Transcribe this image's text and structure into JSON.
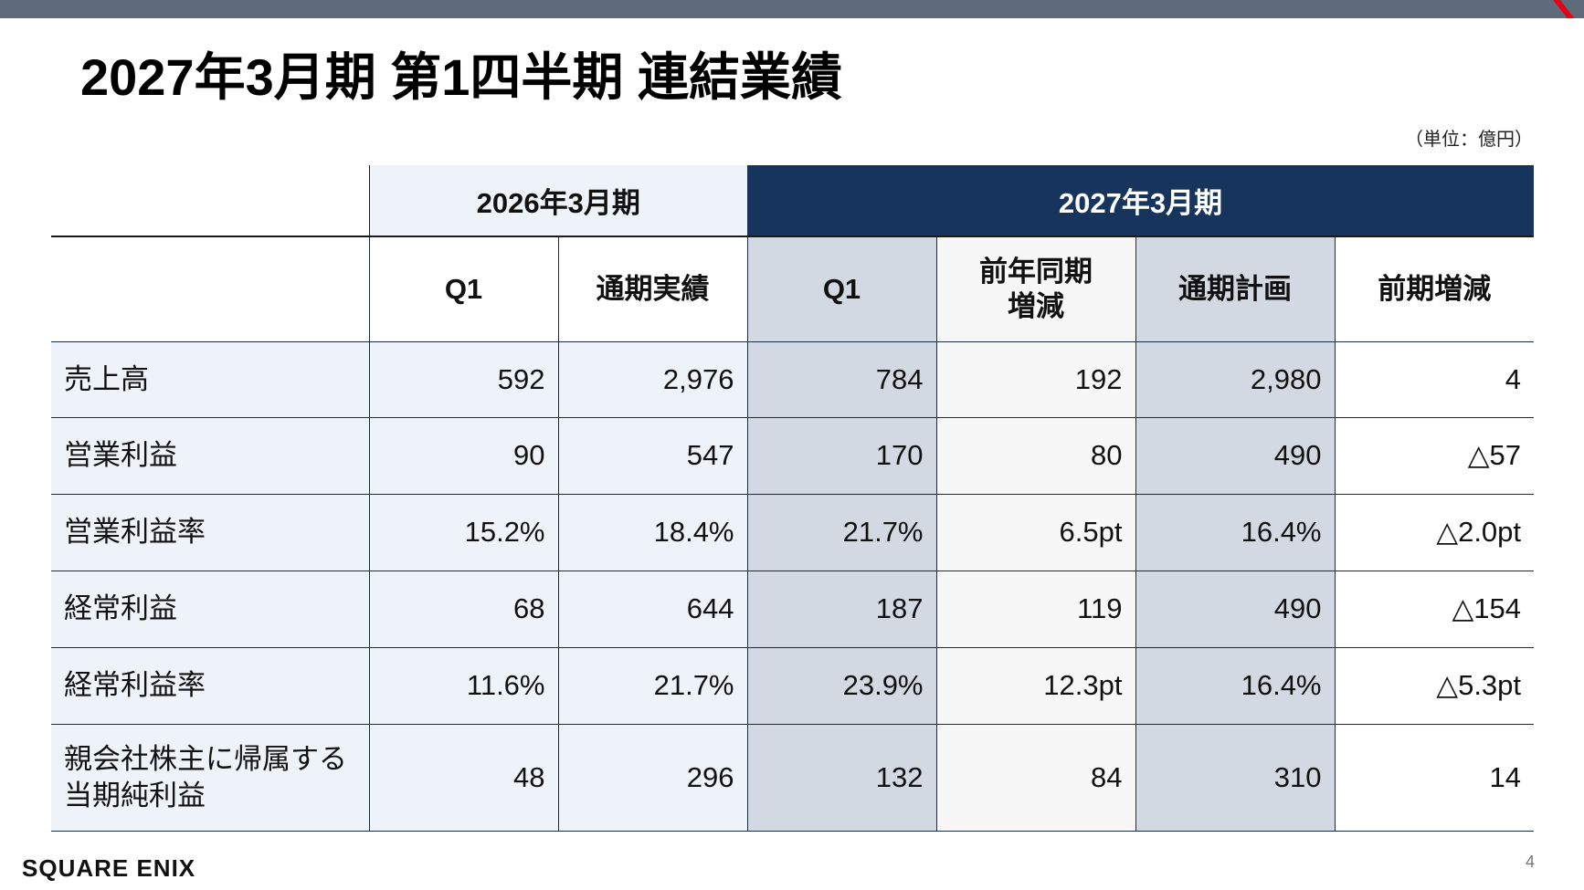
{
  "slide": {
    "title": "2027年3月期 第1四半期 連結業績",
    "unit_note": "（単位：億円）",
    "page_number": "4",
    "logo_text": "SQUARE ENIX"
  },
  "colors": {
    "top_bar": "#5e6b7a",
    "accent_red": "#e60012",
    "fy27_header": "#17345c",
    "light_blue": "#eef2f9",
    "gray_blue": "#d3d9e2"
  },
  "table": {
    "group_headers": [
      "2026年3月期",
      "2027年3月期"
    ],
    "column_headers": [
      "Q1",
      "通期実績",
      "Q1",
      "前年同期\n増減",
      "通期計画",
      "前期増減"
    ],
    "rows": [
      {
        "label": "売上高",
        "values": [
          "592",
          "2,976",
          "784",
          "192",
          "2,980",
          "4"
        ]
      },
      {
        "label": "営業利益",
        "values": [
          "90",
          "547",
          "170",
          "80",
          "490",
          "△57"
        ]
      },
      {
        "label": "営業利益率",
        "values": [
          "15.2%",
          "18.4%",
          "21.7%",
          "6.5pt",
          "16.4%",
          "△2.0pt"
        ]
      },
      {
        "label": "経常利益",
        "values": [
          "68",
          "644",
          "187",
          "119",
          "490",
          "△154"
        ]
      },
      {
        "label": "経常利益率",
        "values": [
          "11.6%",
          "21.7%",
          "23.9%",
          "12.3pt",
          "16.4%",
          "△5.3pt"
        ]
      },
      {
        "label": "親会社株主に帰属する\n当期純利益",
        "values": [
          "48",
          "296",
          "132",
          "84",
          "310",
          "14"
        ]
      }
    ]
  }
}
